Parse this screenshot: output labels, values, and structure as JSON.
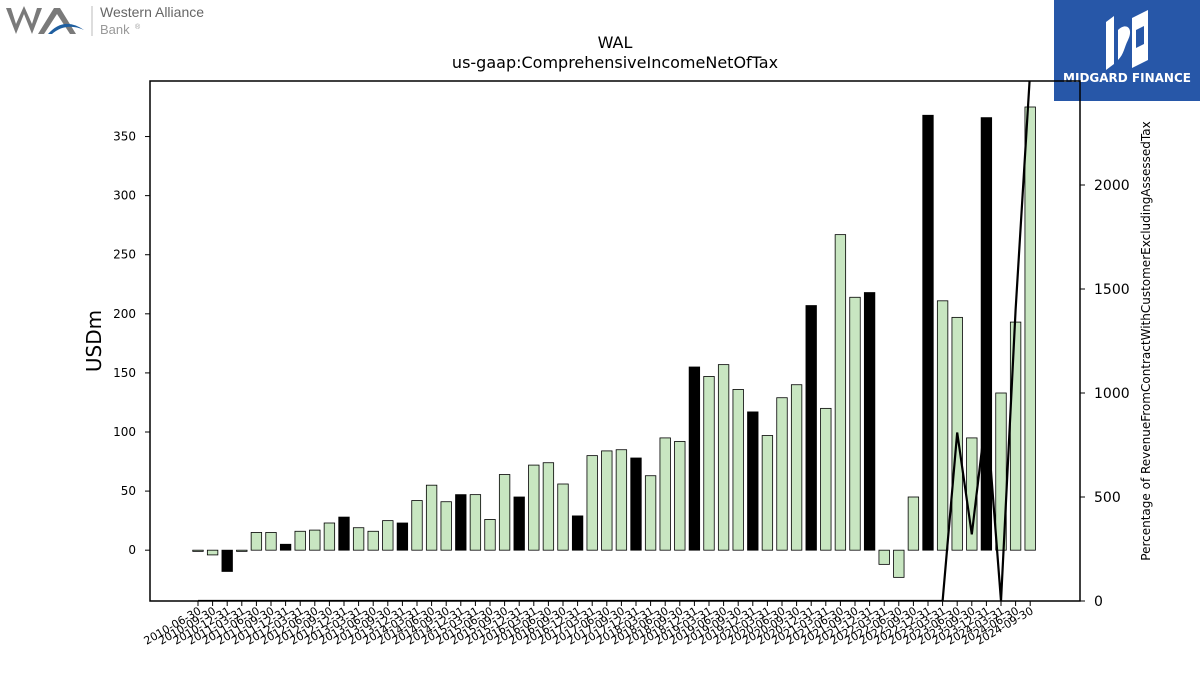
{
  "logo_left": {
    "line1": "Western Alliance",
    "line2": "Bank",
    "mark": "®"
  },
  "logo_right": {
    "text": "MIDGARD FINANCE"
  },
  "chart_data": {
    "type": "bar",
    "title": "WAL",
    "subtitle": "us-gaap:ComprehensiveIncomeNetOfTax",
    "ylabel": "USDm",
    "y2label": "Percentage of RevenueFromContractWithCustomerExcludingAssessedTax",
    "ylim": [
      -43,
      397
    ],
    "y2lim": [
      0,
      2500
    ],
    "yticks": [
      0,
      50,
      100,
      150,
      200,
      250,
      300,
      350
    ],
    "y2ticks": [
      0,
      500,
      1000,
      1500,
      2000
    ],
    "colors": {
      "q4": "#000000",
      "other": "#c8e6c1",
      "line": "#000000"
    },
    "categories": [
      "2010-06-30",
      "2010-09-30",
      "2010-12-31",
      "2011-03-31",
      "2011-06-30",
      "2011-09-30",
      "2011-12-31",
      "2012-03-31",
      "2012-06-30",
      "2012-09-30",
      "2012-12-31",
      "2013-03-31",
      "2013-06-30",
      "2013-09-30",
      "2013-12-31",
      "2014-03-31",
      "2014-06-30",
      "2014-09-30",
      "2014-12-31",
      "2015-03-31",
      "2015-06-30",
      "2015-09-30",
      "2015-12-31",
      "2016-03-31",
      "2016-06-30",
      "2016-09-30",
      "2016-12-31",
      "2017-03-31",
      "2017-06-30",
      "2017-09-30",
      "2017-12-31",
      "2018-03-31",
      "2018-06-30",
      "2018-09-30",
      "2018-12-31",
      "2019-03-31",
      "2019-06-30",
      "2019-09-30",
      "2019-12-31",
      "2020-03-31",
      "2020-06-30",
      "2020-09-30",
      "2020-12-31",
      "2021-03-31",
      "2021-06-30",
      "2021-09-30",
      "2021-12-31",
      "2022-03-31",
      "2022-06-30",
      "2022-09-30",
      "2022-12-31",
      "2023-03-31",
      "2023-06-30",
      "2023-09-30",
      "2023-12-31",
      "2024-03-31",
      "2024-06-30",
      "2024-09-30"
    ],
    "series": [
      {
        "values": [
          -1,
          -4,
          -18,
          -1,
          15,
          15,
          5,
          16,
          17,
          23,
          28,
          19,
          16,
          25,
          23,
          42,
          55,
          41,
          47,
          47,
          26,
          64,
          45,
          72,
          74,
          56,
          29,
          80,
          84,
          85,
          78,
          63,
          95,
          92,
          155,
          147,
          157,
          136,
          117,
          97,
          129,
          140,
          207,
          120,
          267,
          214,
          218,
          -12,
          -23,
          45,
          368,
          211,
          197,
          95,
          366,
          133,
          193,
          375
        ]
      },
      {
        "type": "line",
        "values": [
          0,
          0,
          0,
          0,
          0,
          0,
          0,
          0,
          0,
          0,
          0,
          0,
          0,
          0,
          0,
          0,
          0,
          0,
          0,
          0,
          0,
          0,
          0,
          0,
          0,
          0,
          0,
          0,
          0,
          0,
          0,
          0,
          0,
          0,
          0,
          0,
          0,
          0,
          0,
          0,
          0,
          0,
          0,
          0,
          0,
          0,
          0,
          0,
          0,
          0,
          0,
          0,
          810,
          320,
          910,
          0,
          1400,
          2550
        ]
      }
    ]
  }
}
